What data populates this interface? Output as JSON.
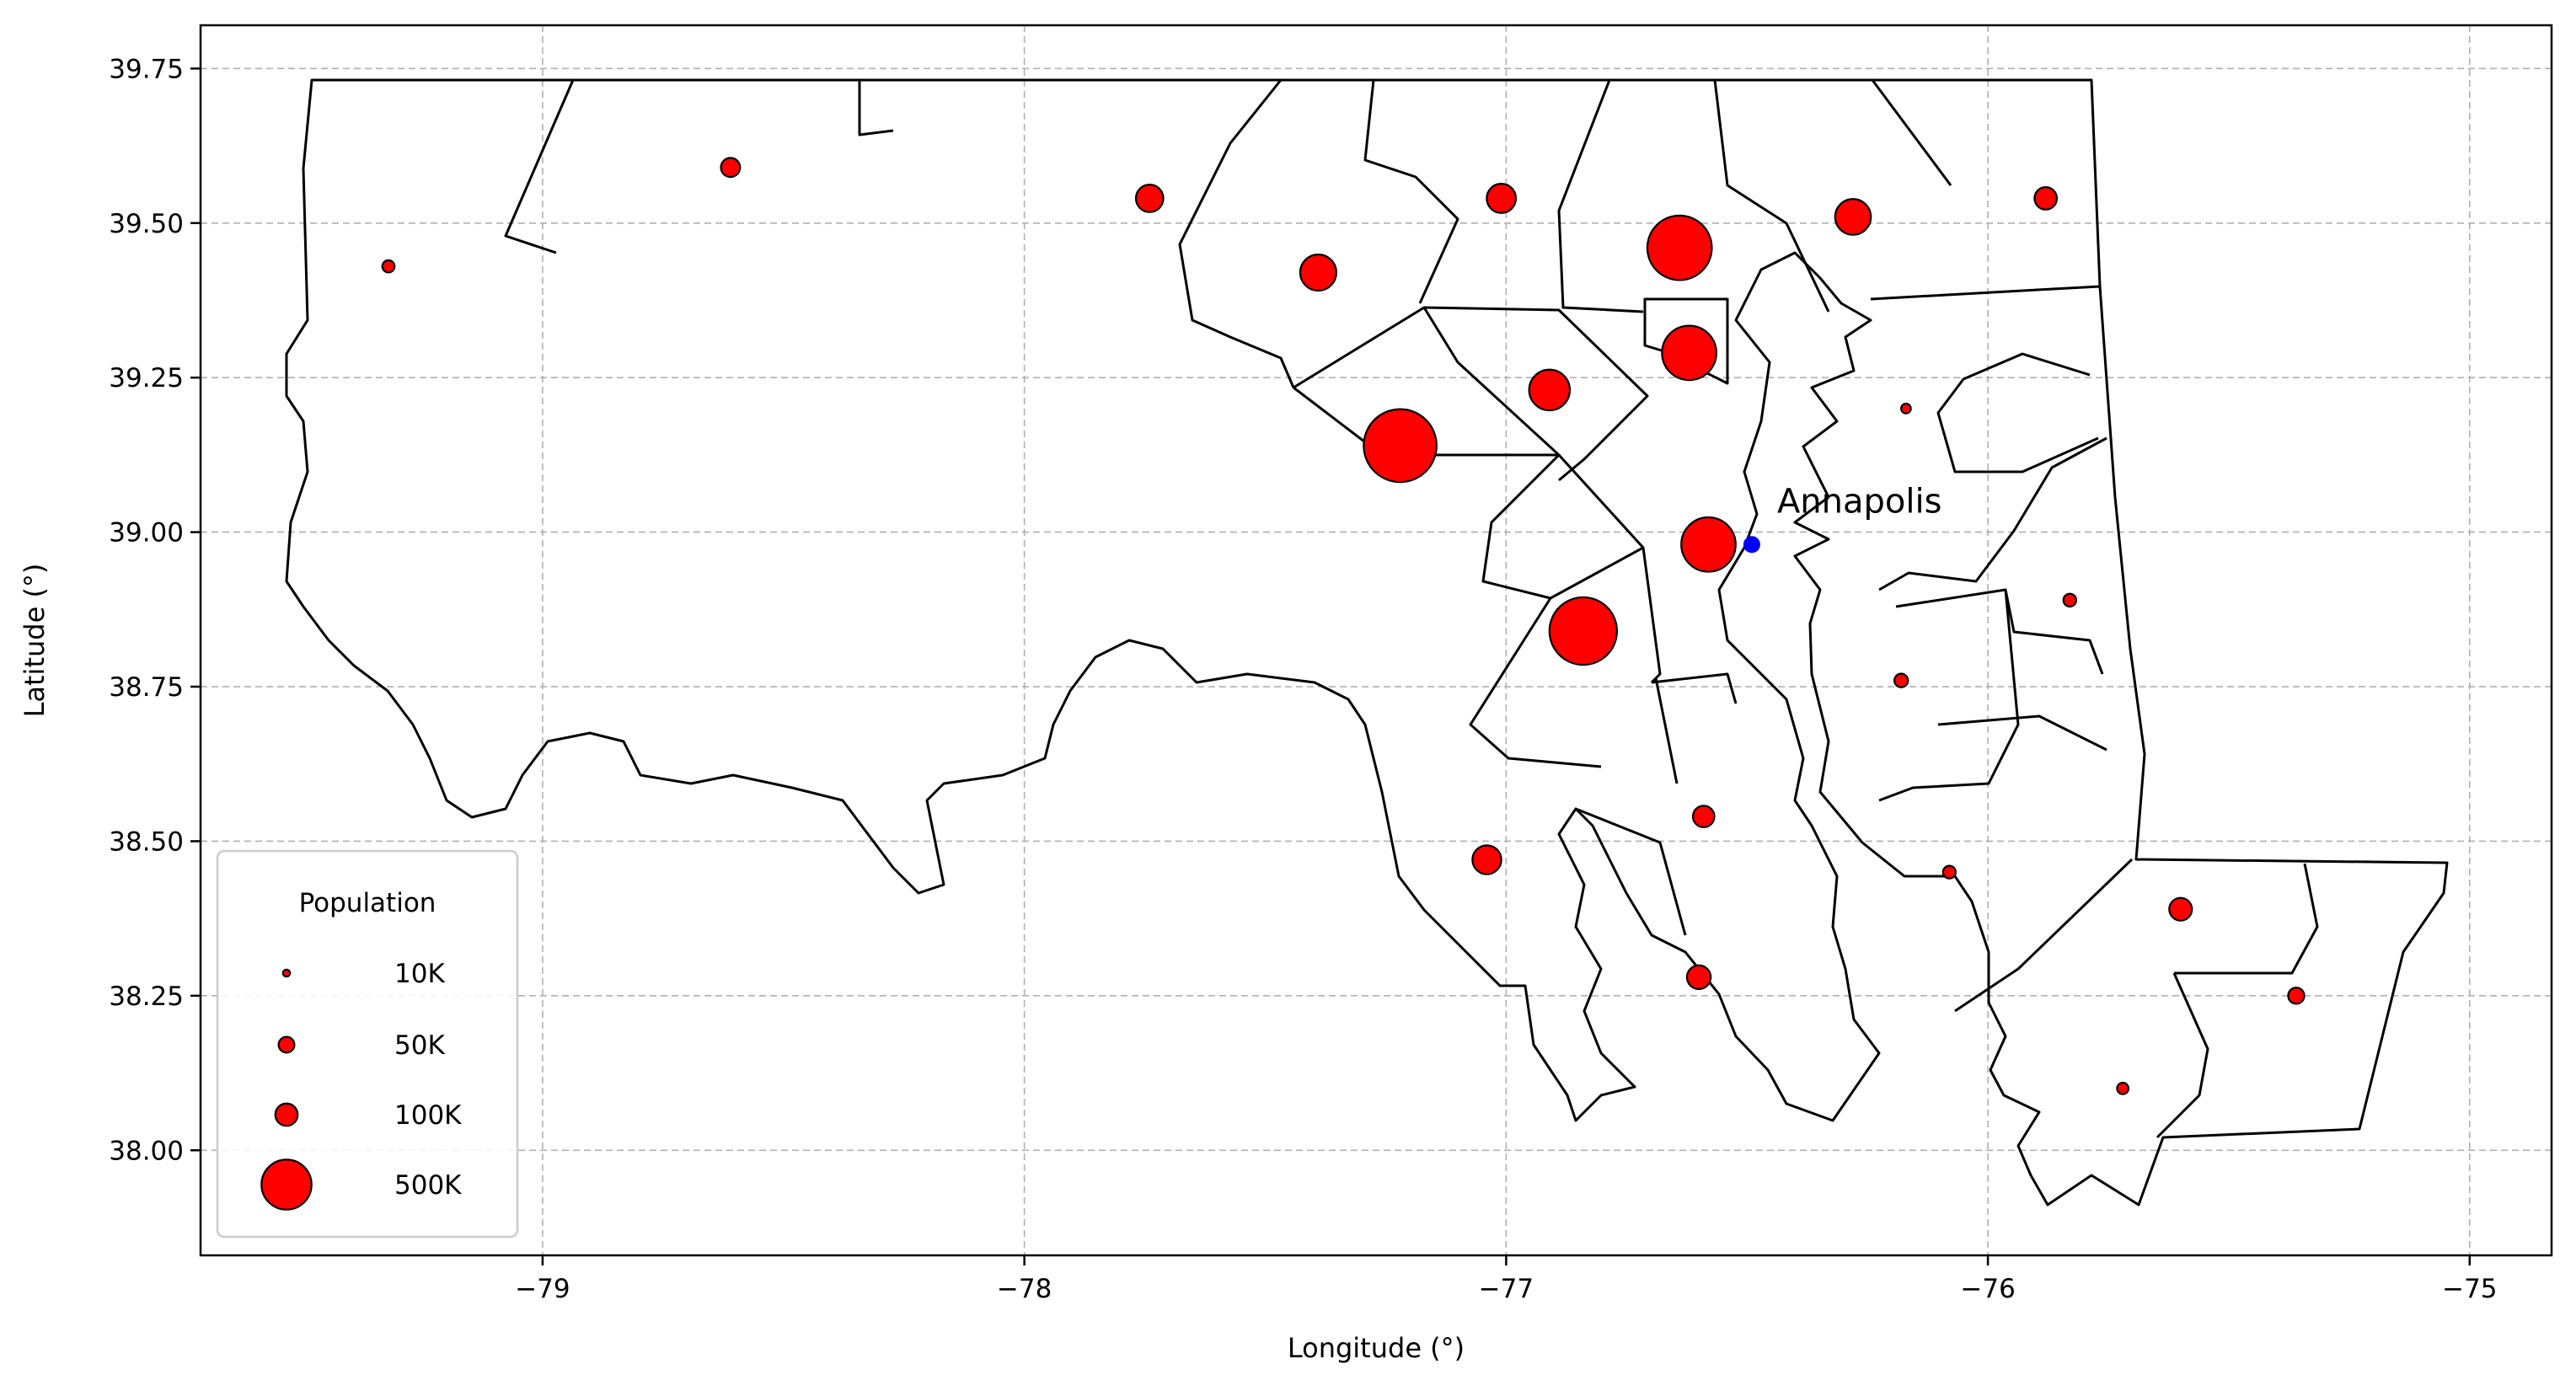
{
  "chart_data": {
    "type": "scatter",
    "subtype": "bubble map",
    "title": "",
    "xlabel": "Longitude (°)",
    "ylabel": "Latitude (°)",
    "xlim": [
      -79.71,
      -74.83
    ],
    "ylim": [
      37.83,
      39.82
    ],
    "xticks": [
      -79,
      -78,
      -77,
      -76,
      -75
    ],
    "xtick_labels": [
      "−79",
      "−78",
      "−77",
      "−76",
      "−75"
    ],
    "yticks": [
      38.0,
      38.25,
      38.5,
      38.75,
      39.0,
      39.25,
      39.5,
      39.75
    ],
    "ytick_labels": [
      "38.00",
      "38.25",
      "38.50",
      "38.75",
      "39.00",
      "39.25",
      "39.50",
      "39.75"
    ],
    "grid": true,
    "legend_position": "lower-left",
    "marker_color": "#ff0000",
    "marker_edge_color": "#000000",
    "highlight_color": "#0000ff",
    "legend": {
      "title": "Population",
      "entries": [
        {
          "label": "10K",
          "population": 10000
        },
        {
          "label": "50K",
          "population": 50000
        },
        {
          "label": "100K",
          "population": 100000
        },
        {
          "label": "500K",
          "population": 500000
        }
      ]
    },
    "highlight": {
      "label": "Annapolis",
      "lon": -76.49,
      "lat": 38.98
    },
    "points": [
      {
        "lon": -79.32,
        "lat": 39.43,
        "population": 30000
      },
      {
        "lon": -78.61,
        "lat": 39.59,
        "population": 73000
      },
      {
        "lon": -77.74,
        "lat": 39.54,
        "population": 150000
      },
      {
        "lon": -77.39,
        "lat": 39.42,
        "population": 260000
      },
      {
        "lon": -77.01,
        "lat": 39.54,
        "population": 170000
      },
      {
        "lon": -76.64,
        "lat": 39.46,
        "population": 830000
      },
      {
        "lon": -76.28,
        "lat": 39.51,
        "population": 255000
      },
      {
        "lon": -75.88,
        "lat": 39.54,
        "population": 100000
      },
      {
        "lon": -76.62,
        "lat": 39.29,
        "population": 590000
      },
      {
        "lon": -76.91,
        "lat": 39.23,
        "population": 330000
      },
      {
        "lon": -77.22,
        "lat": 39.14,
        "population": 1060000
      },
      {
        "lon": -76.17,
        "lat": 39.2,
        "population": 19000
      },
      {
        "lon": -76.58,
        "lat": 38.98,
        "population": 590000
      },
      {
        "lon": -76.84,
        "lat": 38.84,
        "population": 910000
      },
      {
        "lon": -75.83,
        "lat": 38.89,
        "population": 33000
      },
      {
        "lon": -76.18,
        "lat": 38.76,
        "population": 37000
      },
      {
        "lon": -76.59,
        "lat": 38.54,
        "population": 92000
      },
      {
        "lon": -77.04,
        "lat": 38.47,
        "population": 166000
      },
      {
        "lon": -76.08,
        "lat": 38.45,
        "population": 32000
      },
      {
        "lon": -76.6,
        "lat": 38.28,
        "population": 113000
      },
      {
        "lon": -75.6,
        "lat": 38.39,
        "population": 103000
      },
      {
        "lon": -75.36,
        "lat": 38.25,
        "population": 52000
      },
      {
        "lon": -75.72,
        "lat": 38.1,
        "population": 26000
      }
    ]
  }
}
